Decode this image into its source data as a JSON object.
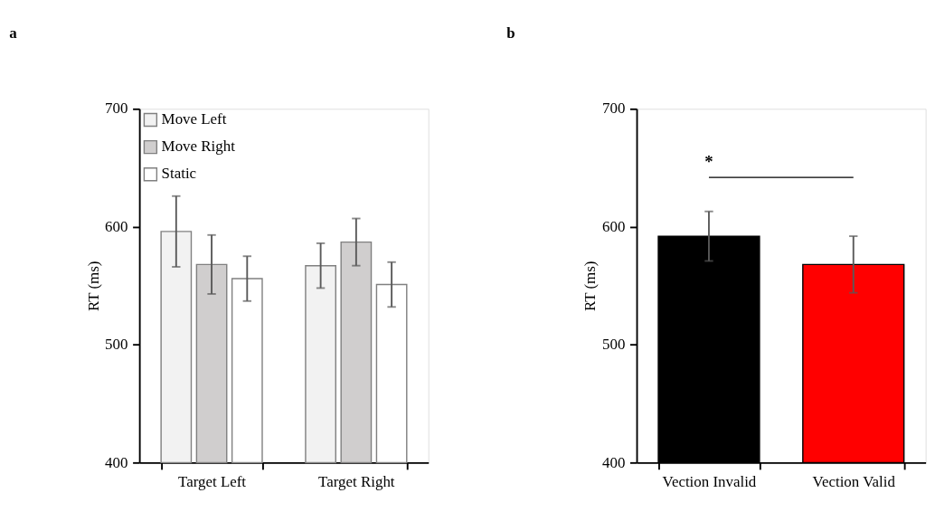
{
  "chart_data": [
    {
      "type": "bar",
      "title": "a",
      "ylabel": "RT (ms)",
      "categories": [
        "Target Left",
        "Target Right"
      ],
      "ylim": [
        400,
        700
      ],
      "yticks": [
        400,
        500,
        600,
        700
      ],
      "grid": false,
      "legend": "top left",
      "series": [
        {
          "name": "Move Left",
          "color": "#f2f2f2",
          "values": [
            596,
            567
          ],
          "errors": [
            30,
            19
          ]
        },
        {
          "name": "Move Right",
          "color": "#d0cece",
          "values": [
            568,
            587
          ],
          "errors": [
            25,
            20
          ]
        },
        {
          "name": "Static",
          "color": "#ffffff",
          "values": [
            556,
            551
          ],
          "errors": [
            19,
            19
          ]
        }
      ]
    },
    {
      "type": "bar",
      "title": "b",
      "ylabel": "RT (ms)",
      "categories": [
        "Vection Invalid",
        "Vection Valid"
      ],
      "ylim": [
        400,
        700
      ],
      "yticks": [
        400,
        500,
        600,
        700
      ],
      "grid": false,
      "values": [
        592,
        568
      ],
      "colors": [
        "#000000",
        "#ff0000"
      ],
      "errors": [
        21,
        24
      ],
      "annotations": [
        "*"
      ]
    }
  ]
}
